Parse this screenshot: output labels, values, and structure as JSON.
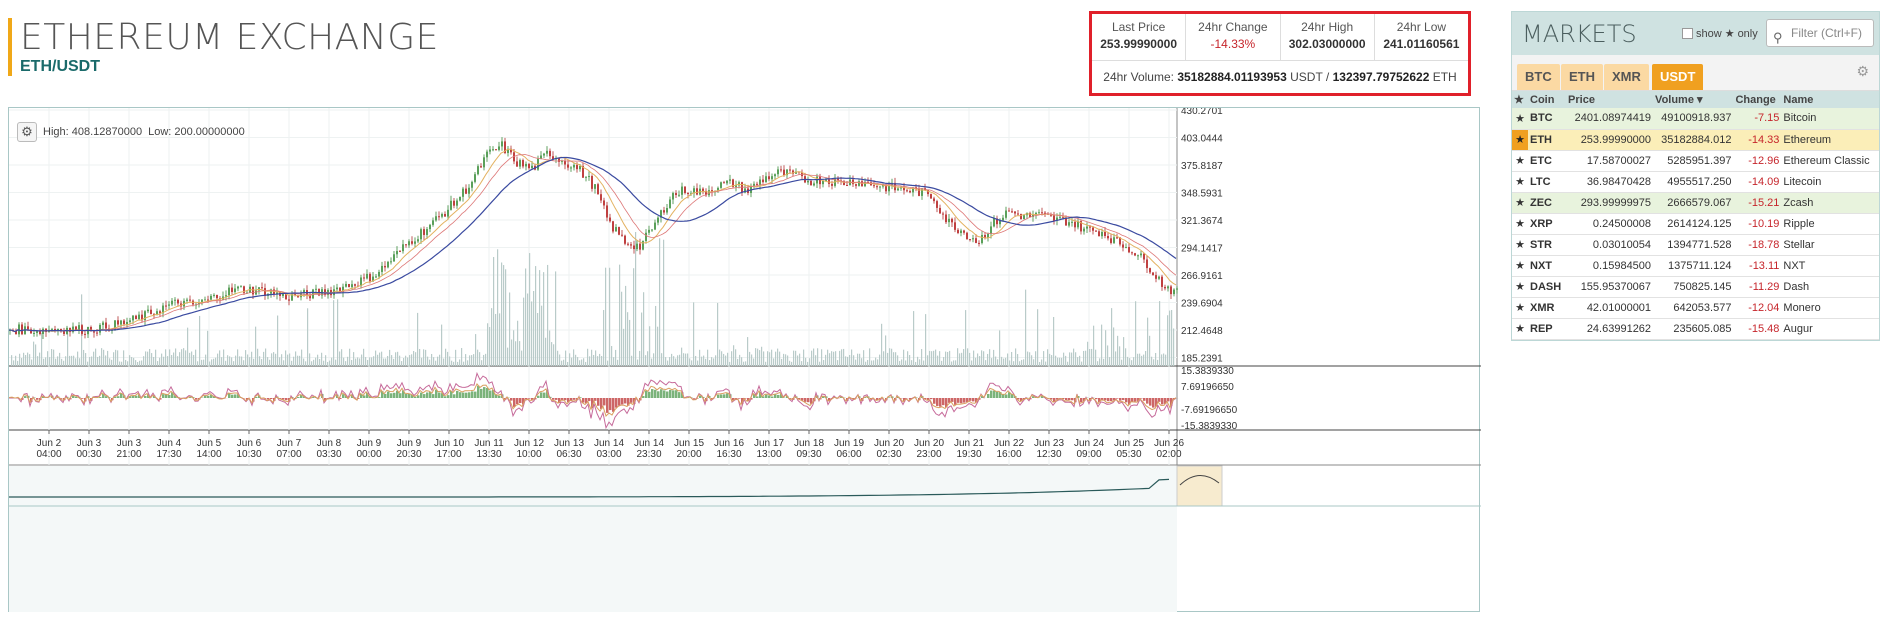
{
  "header": {
    "title": "ETHEREUM EXCHANGE",
    "pair": "ETH/USDT"
  },
  "stats": {
    "items": [
      {
        "label": "Last Price",
        "value": "253.99990000"
      },
      {
        "label": "24hr Change",
        "value": "-14.33%"
      },
      {
        "label": "24hr High",
        "value": "302.03000000"
      },
      {
        "label": "24hr Low",
        "value": "241.01160561"
      }
    ],
    "volume_label": "24hr Volume:",
    "volume_usdt": "35182884.01193953",
    "usdt_unit": "USDT /",
    "volume_eth": "132397.79752622",
    "eth_unit": "ETH"
  },
  "chart": {
    "high_label": "High: 408.12870000",
    "low_label": "Low: 200.00000000",
    "price_ticks": [
      "430.2701",
      "403.0444",
      "375.8187",
      "348.5931",
      "321.3674",
      "294.1417",
      "266.9161",
      "239.6904",
      "212.4648",
      "185.2391"
    ],
    "macd_ticks": [
      "15.3839330",
      "7.69196650",
      "-7.69196650",
      "-15.3839330"
    ],
    "time_ticks": [
      [
        "Jun 2",
        "04:00"
      ],
      [
        "Jun 3",
        "00:30"
      ],
      [
        "Jun 3",
        "21:00"
      ],
      [
        "Jun 4",
        "17:30"
      ],
      [
        "Jun 5",
        "14:00"
      ],
      [
        "Jun 6",
        "10:30"
      ],
      [
        "Jun 7",
        "07:00"
      ],
      [
        "Jun 8",
        "03:30"
      ],
      [
        "Jun 9",
        "00:00"
      ],
      [
        "Jun 9",
        "20:30"
      ],
      [
        "Jun 10",
        "17:00"
      ],
      [
        "Jun 11",
        "13:30"
      ],
      [
        "Jun 12",
        "10:00"
      ],
      [
        "Jun 13",
        "06:30"
      ],
      [
        "Jun 14",
        "03:00"
      ],
      [
        "Jun 14",
        "23:30"
      ],
      [
        "Jun 15",
        "20:00"
      ],
      [
        "Jun 16",
        "16:30"
      ],
      [
        "Jun 17",
        "13:00"
      ],
      [
        "Jun 18",
        "09:30"
      ],
      [
        "Jun 19",
        "06:00"
      ],
      [
        "Jun 20",
        "02:30"
      ],
      [
        "Jun 20",
        "23:00"
      ],
      [
        "Jun 21",
        "19:30"
      ],
      [
        "Jun 22",
        "16:00"
      ],
      [
        "Jun 23",
        "12:30"
      ],
      [
        "Jun 24",
        "09:00"
      ],
      [
        "Jun 25",
        "05:30"
      ],
      [
        "Jun 26",
        "02:00"
      ]
    ],
    "price_path": [
      213,
      213,
      212,
      214,
      213,
      213,
      215,
      218,
      222,
      228,
      235,
      240,
      237,
      243,
      250,
      253,
      252,
      250,
      245,
      247,
      249,
      252,
      257,
      262,
      270,
      285,
      300,
      312,
      325,
      340,
      358,
      385,
      395,
      378,
      372,
      388,
      380,
      372,
      355,
      318,
      300,
      295,
      318,
      345,
      352,
      348,
      355,
      358,
      350,
      362,
      368,
      366,
      360,
      362,
      358,
      360,
      357,
      354,
      352,
      350,
      345,
      320,
      310,
      300,
      318,
      330,
      325,
      326,
      322,
      320,
      312,
      310,
      300,
      292,
      278,
      258,
      248
    ]
  },
  "markets": {
    "title": "MARKETS",
    "show_label": "show",
    "only_label": "only",
    "filter_placeholder": "Filter (Ctrl+F)",
    "tabs": [
      "BTC",
      "ETH",
      "XMR",
      "USDT"
    ],
    "columns": [
      "Coin",
      "Price",
      "Volume",
      "Change",
      "Name"
    ],
    "rows": [
      {
        "coin": "BTC",
        "price": "2401.08974419",
        "volume": "49100918.937",
        "change": "-7.15",
        "name": "Bitcoin"
      },
      {
        "coin": "ETH",
        "price": "253.99990000",
        "volume": "35182884.012",
        "change": "-14.33",
        "name": "Ethereum"
      },
      {
        "coin": "ETC",
        "price": "17.58700027",
        "volume": "5285951.397",
        "change": "-12.96",
        "name": "Ethereum Classic"
      },
      {
        "coin": "LTC",
        "price": "36.98470428",
        "volume": "4955517.250",
        "change": "-14.09",
        "name": "Litecoin"
      },
      {
        "coin": "ZEC",
        "price": "293.99999975",
        "volume": "2666579.067",
        "change": "-15.21",
        "name": "Zcash"
      },
      {
        "coin": "XRP",
        "price": "0.24500008",
        "volume": "2614124.125",
        "change": "-10.19",
        "name": "Ripple"
      },
      {
        "coin": "STR",
        "price": "0.03010054",
        "volume": "1394771.528",
        "change": "-18.78",
        "name": "Stellar"
      },
      {
        "coin": "NXT",
        "price": "0.15984500",
        "volume": "1375711.124",
        "change": "-13.11",
        "name": "NXT"
      },
      {
        "coin": "DASH",
        "price": "155.95370067",
        "volume": "750825.145",
        "change": "-11.29",
        "name": "Dash"
      },
      {
        "coin": "XMR",
        "price": "42.01000001",
        "volume": "642053.577",
        "change": "-12.04",
        "name": "Monero"
      },
      {
        "coin": "REP",
        "price": "24.63991262",
        "volume": "235605.085",
        "change": "-15.48",
        "name": "Augur"
      }
    ]
  }
}
